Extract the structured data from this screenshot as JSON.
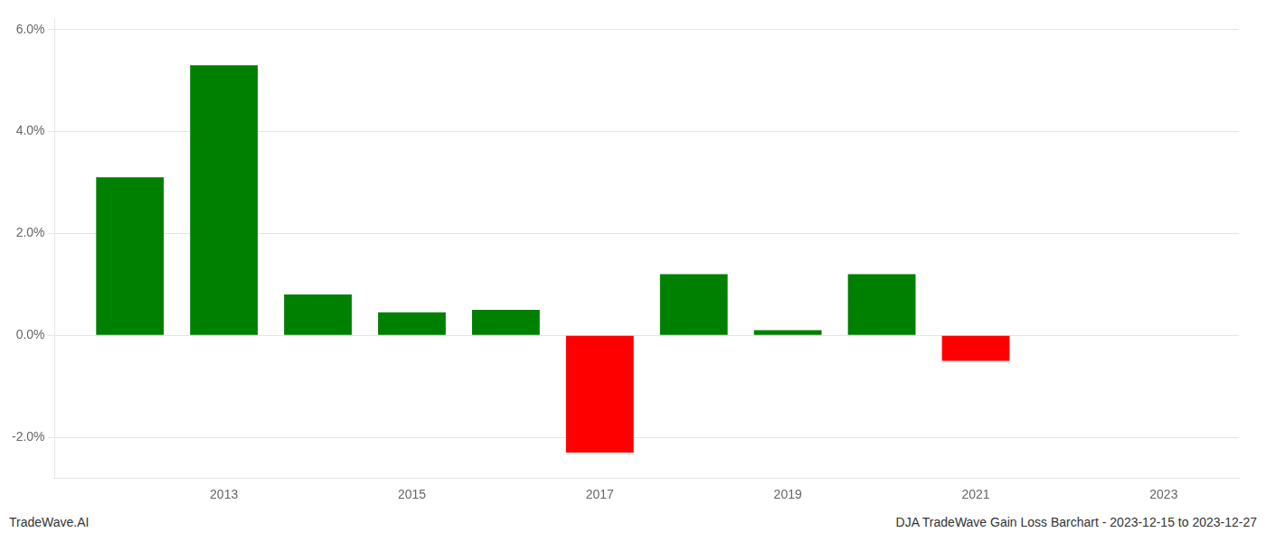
{
  "chart_data": {
    "type": "bar",
    "x": [
      2012,
      2013,
      2014,
      2015,
      2016,
      2017,
      2018,
      2019,
      2020,
      2021,
      2022
    ],
    "values": [
      0.031,
      0.053,
      0.008,
      0.0045,
      0.005,
      -0.023,
      0.012,
      0.001,
      0.012,
      -0.005,
      0.0
    ],
    "colors": [
      "#008000",
      "#008000",
      "#008000",
      "#008000",
      "#008000",
      "#ff0000",
      "#008000",
      "#008000",
      "#008000",
      "#ff0000",
      "#008000"
    ],
    "xlim": [
      2011.2,
      2023.8
    ],
    "xticks": [
      2013,
      2015,
      2017,
      2019,
      2021,
      2023
    ],
    "ylim": [
      -0.028,
      0.062
    ],
    "yticks": [
      {
        "value": -0.02,
        "label": "-2.0%"
      },
      {
        "value": 0,
        "label": "0.0%"
      },
      {
        "value": 0.02,
        "label": "2.0%"
      },
      {
        "value": 0.04,
        "label": "4.0%"
      },
      {
        "value": 0.06,
        "label": "6.0%"
      }
    ],
    "grid": true,
    "annotations": [
      "TradeWave.AI",
      "DJA TradeWave Gain Loss Barchart - 2023-12-15 to 2023-12-27"
    ]
  }
}
